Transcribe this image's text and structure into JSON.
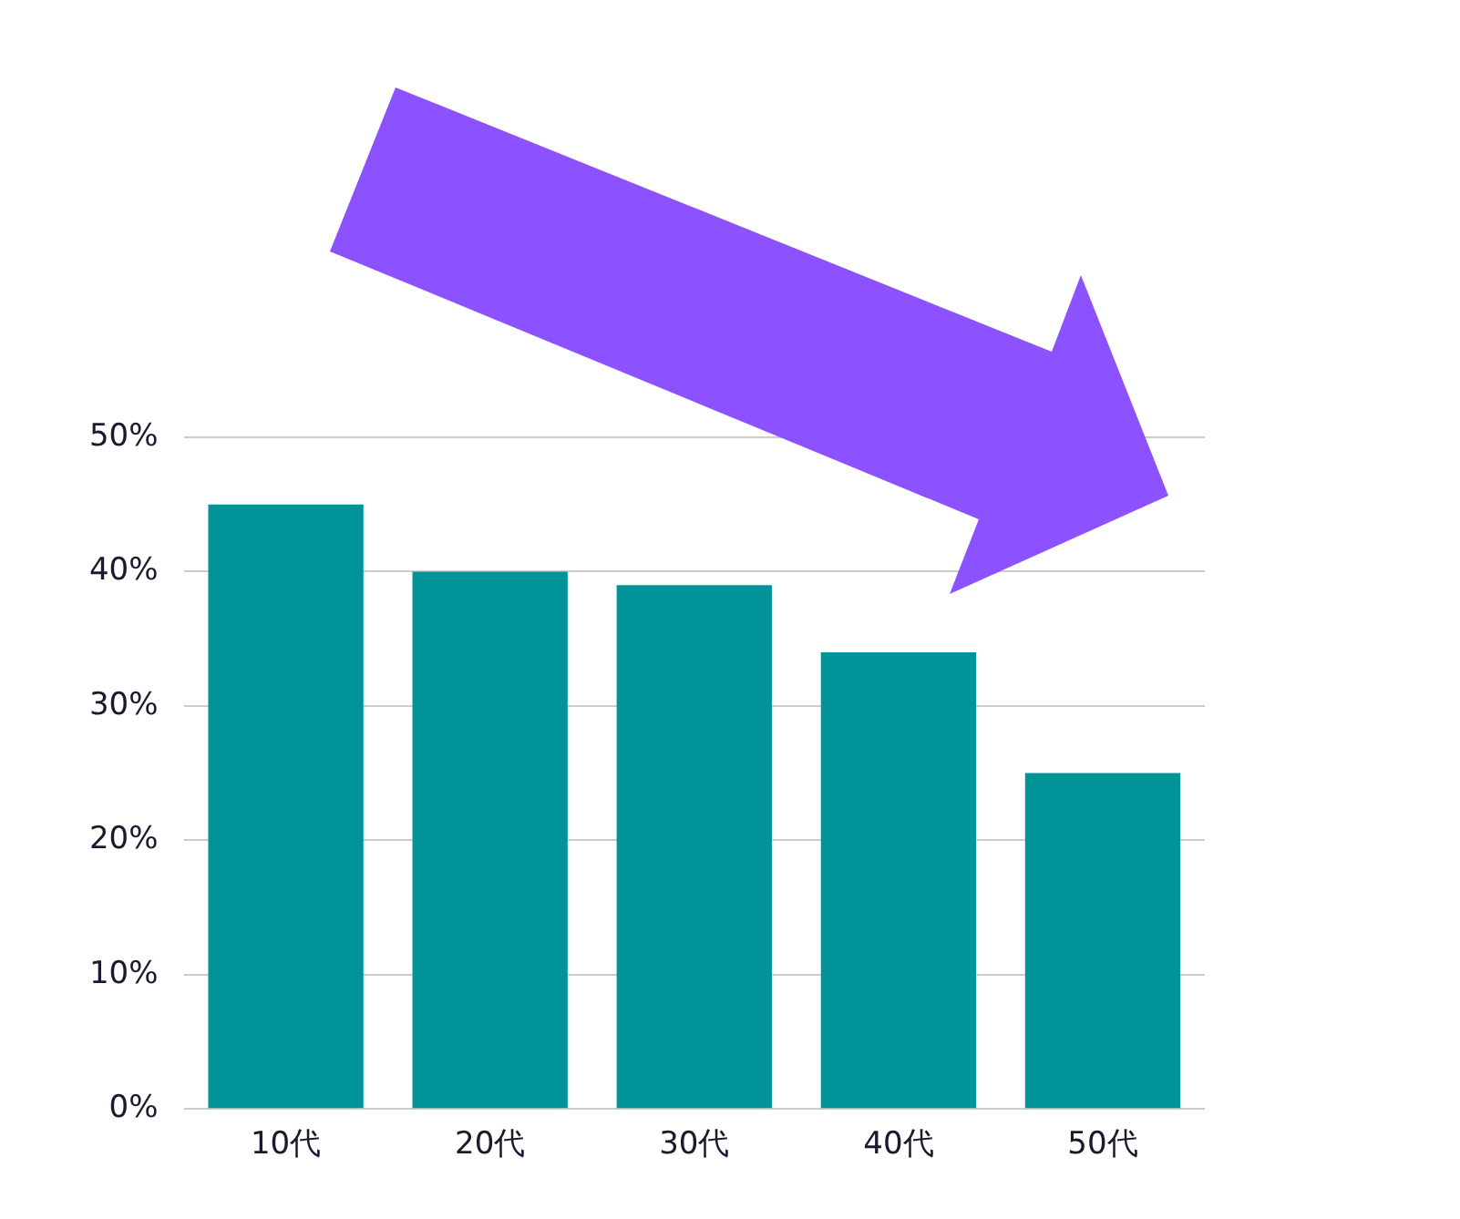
{
  "chart_data": {
    "type": "bar",
    "categories": [
      "10代",
      "20代",
      "30代",
      "40代",
      "50代"
    ],
    "values": [
      45,
      40,
      39,
      34,
      25
    ],
    "color": "#009499",
    "ylim": [
      0,
      50
    ],
    "yticks": [
      {
        "value": 0,
        "label": "0%"
      },
      {
        "value": 10,
        "label": "10%"
      },
      {
        "value": 20,
        "label": "20%"
      },
      {
        "value": 30,
        "label": "30%"
      },
      {
        "value": 40,
        "label": "40%"
      },
      {
        "value": 50,
        "label": "50%"
      }
    ],
    "grid": "y",
    "legend": false
  }
}
